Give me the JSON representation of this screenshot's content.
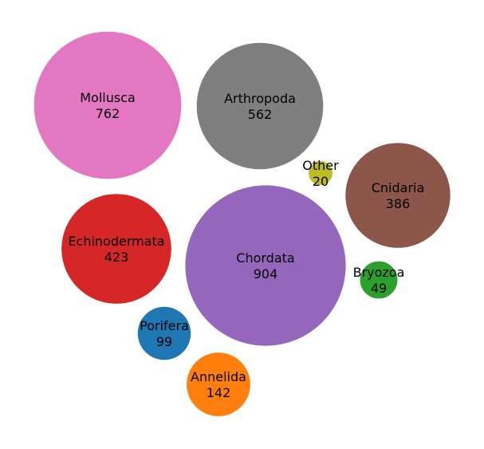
{
  "chart_data": {
    "type": "bubble",
    "title": "",
    "series": [
      {
        "name": "Mollusca",
        "value": 762,
        "color": "#e377c2"
      },
      {
        "name": "Arthropoda",
        "value": 562,
        "color": "#7f7f7f"
      },
      {
        "name": "Other",
        "value": 20,
        "color": "#bcbd22"
      },
      {
        "name": "Cnidaria",
        "value": 386,
        "color": "#8c564b"
      },
      {
        "name": "Echinodermata",
        "value": 423,
        "color": "#d62728"
      },
      {
        "name": "Chordata",
        "value": 904,
        "color": "#9467bd"
      },
      {
        "name": "Bryozoa",
        "value": 49,
        "color": "#2ca02c"
      },
      {
        "name": "Porifera",
        "value": 99,
        "color": "#1f77b4"
      },
      {
        "name": "Annelida",
        "value": 142,
        "color": "#ff7f0e"
      }
    ]
  }
}
